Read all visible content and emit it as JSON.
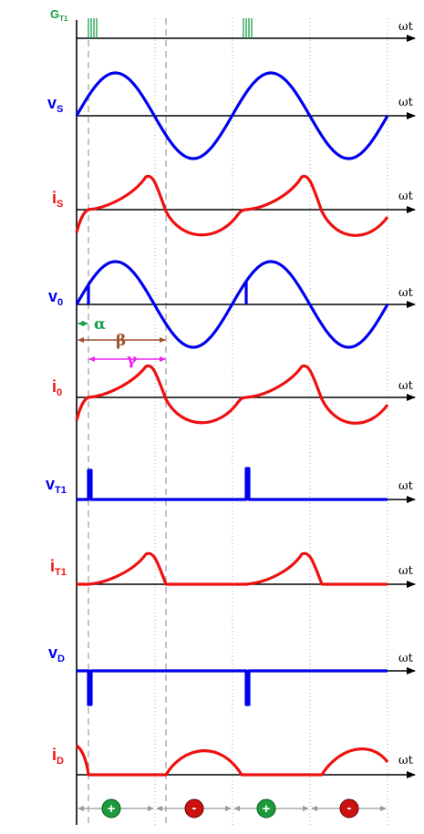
{
  "colors": {
    "gate": "#1aa04a",
    "voltage": "#0000ee",
    "current": "#ee1111",
    "axis": "#000000",
    "guide": "#888888",
    "alpha": "#1aa04a",
    "beta": "#a0522d",
    "gamma": "#ee22ee",
    "plus_badge": "#1d9a3c",
    "minus_badge": "#cc1111"
  },
  "axis_label": "ωt",
  "signals": {
    "gate": {
      "main": "G",
      "sub": "T1"
    },
    "vs": {
      "main": "v",
      "sub": "S"
    },
    "is": {
      "main": "i",
      "sub": "S"
    },
    "v0": {
      "main": "v",
      "sub": "0"
    },
    "i0": {
      "main": "i",
      "sub": "0"
    },
    "vt1": {
      "main": "v",
      "sub": "T1"
    },
    "it1": {
      "main": "i",
      "sub": "T1"
    },
    "vd": {
      "main": "v",
      "sub": "D"
    },
    "id": {
      "main": "i",
      "sub": "D"
    }
  },
  "dimensions": {
    "alpha": "α",
    "beta": "β",
    "gamma": "γ"
  },
  "badges": [
    "+",
    "-",
    "+",
    "-"
  ]
}
